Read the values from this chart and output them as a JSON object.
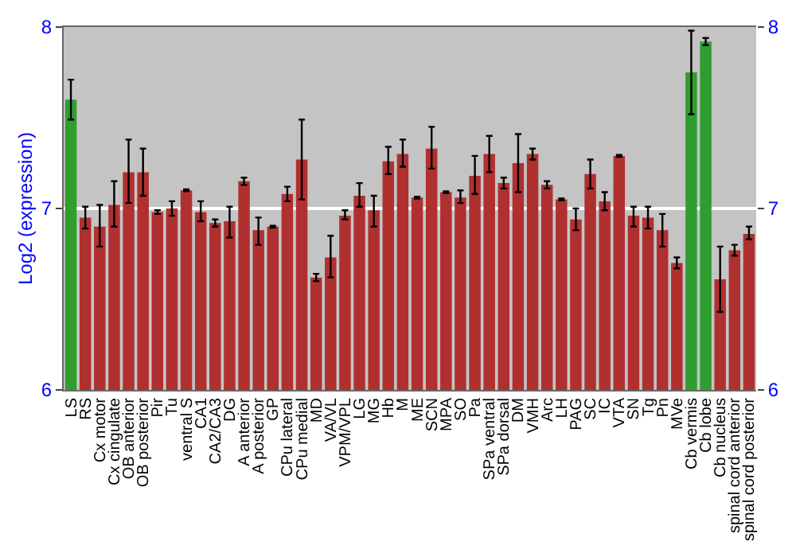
{
  "chart_data": {
    "type": "bar",
    "ylabel": "Log2 (expression)",
    "categories": [
      "LS",
      "RS",
      "Cx motor",
      "Cx cingulate",
      "OB anterior",
      "OB posterior",
      "Pir",
      "Tu",
      "ventral S",
      "CA1",
      "CA2/CA3",
      "DG",
      "A anterior",
      "A posterior",
      "GP",
      "CPu lateral",
      "CPu medial",
      "MD",
      "VA/VL",
      "VPM/VPL",
      "LG",
      "MG",
      "Hb",
      "M",
      "ME",
      "SCN",
      "MPA",
      "SO",
      "Pa",
      "SPa ventral",
      "SPa dorsal",
      "DM",
      "VMH",
      "Arc",
      "LH",
      "PAG",
      "SC",
      "IC",
      "VTA",
      "SN",
      "Tg",
      "Pn",
      "MVe",
      "Cb vermis",
      "Cb lobe",
      "Cb nucleus",
      "spinal cord anterior",
      "spinal cord posterior"
    ],
    "values": [
      7.6,
      6.95,
      6.9,
      7.02,
      7.2,
      7.2,
      6.98,
      7.0,
      7.1,
      6.98,
      6.92,
      6.93,
      7.15,
      6.88,
      6.9,
      7.08,
      7.27,
      6.62,
      6.73,
      6.96,
      7.07,
      6.99,
      7.26,
      7.3,
      7.06,
      7.33,
      7.09,
      7.06,
      7.18,
      7.3,
      7.14,
      7.25,
      7.3,
      7.13,
      7.05,
      6.94,
      7.19,
      7.04,
      7.29,
      6.96,
      6.95,
      6.88,
      6.7,
      7.75,
      7.92,
      6.61,
      6.77,
      6.86
    ],
    "errors": [
      [
        7.49,
        7.71
      ],
      [
        6.89,
        7.01
      ],
      [
        6.79,
        7.02
      ],
      [
        6.9,
        7.15
      ],
      [
        7.03,
        7.38
      ],
      [
        7.07,
        7.33
      ],
      [
        6.97,
        6.99
      ],
      [
        6.96,
        7.04
      ],
      0.005,
      [
        6.93,
        7.04
      ],
      [
        6.9,
        6.94
      ],
      [
        6.84,
        7.01
      ],
      [
        7.13,
        7.17
      ],
      [
        6.8,
        6.95
      ],
      0.005,
      [
        7.04,
        7.12
      ],
      [
        7.05,
        7.49
      ],
      [
        6.6,
        6.64
      ],
      [
        6.62,
        6.85
      ],
      [
        6.94,
        6.99
      ],
      [
        7.01,
        7.14
      ],
      [
        6.9,
        7.07
      ],
      [
        7.19,
        7.34
      ],
      [
        7.23,
        7.38
      ],
      0.005,
      [
        7.22,
        7.45
      ],
      0.005,
      [
        7.03,
        7.1
      ],
      [
        7.08,
        7.29
      ],
      [
        7.2,
        7.4
      ],
      [
        7.11,
        7.17
      ],
      [
        7.09,
        7.41
      ],
      [
        7.27,
        7.33
      ],
      [
        7.11,
        7.15
      ],
      0.005,
      [
        6.88,
        7.0
      ],
      [
        7.11,
        7.27
      ],
      [
        6.99,
        7.09
      ],
      0.005,
      [
        6.9,
        7.01
      ],
      [
        6.89,
        7.01
      ],
      [
        6.79,
        6.97
      ],
      [
        6.67,
        6.73
      ],
      [
        7.52,
        7.98
      ],
      [
        7.9,
        7.94
      ],
      [
        6.43,
        6.79
      ],
      [
        6.74,
        6.8
      ],
      [
        6.83,
        6.9
      ]
    ],
    "colors": [
      "#2e9e2e",
      "#b03030",
      "#b03030",
      "#b03030",
      "#b03030",
      "#b03030",
      "#b03030",
      "#b03030",
      "#b03030",
      "#b03030",
      "#b03030",
      "#b03030",
      "#b03030",
      "#b03030",
      "#b03030",
      "#b03030",
      "#b03030",
      "#b03030",
      "#b03030",
      "#b03030",
      "#b03030",
      "#b03030",
      "#b03030",
      "#b03030",
      "#b03030",
      "#b03030",
      "#b03030",
      "#b03030",
      "#b03030",
      "#b03030",
      "#b03030",
      "#b03030",
      "#b03030",
      "#b03030",
      "#b03030",
      "#b03030",
      "#b03030",
      "#b03030",
      "#b03030",
      "#b03030",
      "#b03030",
      "#b03030",
      "#b03030",
      "#2e9e2e",
      "#2e9e2e",
      "#b03030",
      "#b03030",
      "#b03030"
    ],
    "ylim": [
      6,
      8
    ],
    "yticks": [
      6,
      7,
      8
    ],
    "y2lim": [
      6,
      8
    ],
    "y2ticks": [
      6,
      7,
      8
    ],
    "grid": "y"
  }
}
